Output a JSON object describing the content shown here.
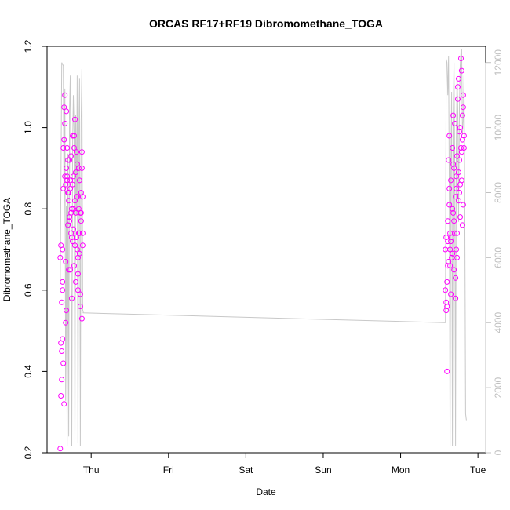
{
  "chart_data": {
    "type": "scatter",
    "title": "ORCAS RF17+RF19 Dibromomethane_TOGA",
    "xlabel": "Date",
    "ylabel": "Dibromomethane_TOGA",
    "x_tick_labels": [
      "Thu",
      "Fri",
      "Sat",
      "Sun",
      "Mon",
      "Tue"
    ],
    "x_ticks": [
      1.0,
      2.0,
      3.0,
      4.0,
      5.0,
      6.0
    ],
    "xlim": [
      0.43,
      6.1
    ],
    "y_ticks": [
      0.2,
      0.4,
      0.6,
      0.8,
      1.0,
      1.2
    ],
    "y_tick_labels": [
      "0.2",
      "0.4",
      "0.6",
      "0.8",
      "1.0",
      "1.2"
    ],
    "ylim": [
      0.2,
      1.2
    ],
    "y2_ticks": [
      0,
      2000,
      4000,
      6000,
      8000,
      10000,
      12000
    ],
    "y2_tick_labels": [
      "0",
      "2000",
      "4000",
      "6000",
      "8000",
      "10000",
      "12000"
    ],
    "y2lim": [
      0,
      12500
    ],
    "colors": {
      "points": "#ff00ff",
      "altitude_line": "#c8c8c8",
      "right_axis": "#c0c0c0"
    },
    "series": [
      {
        "kind": "points",
        "x": [
          0.6,
          0.61,
          0.62,
          0.63,
          0.64,
          0.65,
          0.66,
          0.67,
          0.68,
          0.69,
          0.7,
          0.71,
          0.72,
          0.73,
          0.74,
          0.75,
          0.76,
          0.77,
          0.78,
          0.79,
          0.8,
          0.81,
          0.82,
          0.83,
          0.84,
          0.85,
          0.86,
          0.87,
          0.88,
          0.89,
          0.6,
          0.61,
          0.62,
          0.63,
          0.64,
          0.65,
          0.66,
          0.67,
          0.68,
          0.69,
          0.7,
          0.71,
          0.72,
          0.73,
          0.74,
          0.75,
          0.76,
          0.77,
          0.78,
          0.79,
          0.8,
          0.81,
          0.82,
          0.83,
          0.84,
          0.85,
          0.86,
          0.87,
          0.88,
          0.89,
          0.61,
          0.63,
          0.65,
          0.67,
          0.69,
          0.71,
          0.73,
          0.75,
          0.77,
          0.79,
          0.81,
          0.83,
          0.85,
          0.87,
          0.89,
          0.62,
          0.66,
          0.7,
          0.74,
          0.78,
          0.82,
          0.86,
          0.64,
          0.68,
          0.72,
          0.76,
          0.8,
          0.84,
          0.88,
          0.63,
          5.58,
          5.59,
          5.6,
          5.61,
          5.62,
          5.63,
          5.64,
          5.65,
          5.66,
          5.67,
          5.68,
          5.69,
          5.7,
          5.71,
          5.72,
          5.73,
          5.74,
          5.75,
          5.76,
          5.77,
          5.78,
          5.79,
          5.8,
          5.81,
          5.82,
          5.58,
          5.59,
          5.6,
          5.61,
          5.62,
          5.63,
          5.64,
          5.65,
          5.66,
          5.67,
          5.68,
          5.69,
          5.7,
          5.71,
          5.72,
          5.73,
          5.74,
          5.75,
          5.76,
          5.77,
          5.78,
          5.79,
          5.8,
          5.81,
          5.82,
          5.59,
          5.61,
          5.63,
          5.65,
          5.67,
          5.69,
          5.71,
          5.73,
          5.75,
          5.77,
          5.79,
          5.81,
          5.6,
          5.64,
          5.68,
          5.72,
          5.76,
          5.8
        ],
        "y": [
          0.21,
          0.47,
          0.38,
          0.7,
          0.85,
          0.97,
          1.08,
          0.86,
          0.9,
          0.95,
          0.92,
          0.82,
          0.78,
          0.85,
          0.74,
          0.8,
          0.72,
          0.88,
          0.98,
          1.02,
          0.79,
          0.83,
          0.7,
          0.6,
          0.9,
          0.74,
          0.56,
          0.79,
          0.53,
          0.83,
          0.68,
          0.34,
          0.45,
          0.6,
          0.95,
          1.05,
          0.88,
          0.67,
          0.55,
          0.88,
          0.76,
          0.84,
          0.92,
          0.65,
          0.79,
          0.58,
          0.86,
          0.75,
          0.95,
          0.82,
          0.62,
          0.73,
          0.91,
          0.68,
          0.8,
          0.87,
          0.59,
          0.77,
          0.94,
          0.71,
          0.71,
          0.48,
          0.32,
          0.52,
          0.87,
          0.65,
          0.87,
          0.73,
          0.8,
          0.71,
          0.94,
          0.64,
          0.69,
          0.84,
          0.74,
          0.57,
          1.01,
          0.84,
          0.93,
          0.66,
          0.83,
          0.79,
          0.42,
          1.04,
          0.77,
          0.98,
          0.89,
          0.74,
          0.9,
          0.62,
          0.6,
          0.57,
          0.4,
          0.72,
          0.92,
          0.85,
          0.7,
          0.59,
          0.68,
          0.8,
          1.03,
          0.65,
          0.74,
          0.58,
          0.88,
          0.93,
          1.07,
          0.82,
          0.99,
          0.86,
          0.95,
          1.14,
          0.97,
          0.81,
          0.95,
          0.7,
          0.55,
          0.62,
          0.77,
          0.67,
          0.98,
          0.66,
          0.87,
          0.73,
          0.95,
          0.79,
          0.9,
          1.01,
          0.63,
          0.85,
          0.74,
          1.1,
          0.89,
          0.92,
          1.0,
          1.17,
          0.87,
          0.76,
          1.05,
          0.98,
          0.73,
          0.66,
          0.81,
          0.72,
          0.69,
          0.77,
          0.83,
          0.68,
          1.12,
          0.78,
          0.94,
          1.08,
          0.56,
          0.74,
          0.91,
          0.7,
          0.84,
          1.03
        ]
      },
      {
        "kind": "line",
        "name": "",
        "x": [
          0.6,
          0.62,
          0.64,
          0.65,
          0.66,
          0.67,
          0.68,
          0.69,
          0.7,
          0.71,
          0.72,
          0.73,
          0.74,
          0.75,
          0.76,
          0.77,
          0.78,
          0.79,
          0.8,
          0.81,
          0.82,
          0.83,
          0.84,
          0.85,
          0.86,
          0.87,
          0.88,
          0.89,
          0.9,
          0.89,
          0.9,
          5.57,
          5.58,
          5.59,
          5.6,
          5.61,
          5.62,
          5.63,
          5.64,
          5.65,
          5.66,
          5.67,
          5.68,
          5.69,
          5.7,
          5.71,
          5.72,
          5.73,
          5.74,
          5.75,
          5.76,
          5.77,
          5.78,
          5.79,
          5.8,
          5.81,
          5.82,
          5.83,
          5.84,
          5.85
        ],
        "y": [
          5200,
          12000,
          11900,
          7000,
          11200,
          1600,
          7600,
          200,
          9200,
          500,
          10500,
          11600,
          7100,
          200,
          9300,
          11000,
          9800,
          300,
          10400,
          7300,
          11600,
          300,
          9600,
          11500,
          200,
          10200,
          11800,
          4400,
          4300,
          4300,
          4300,
          4000,
          4000,
          12100,
          12000,
          11000,
          12200,
          7800,
          200,
          8600,
          11100,
          200,
          10300,
          12000,
          8700,
          200,
          9200,
          11600,
          10500,
          7100,
          10600,
          11900,
          12300,
          12400,
          9800,
          10200,
          11600,
          7500,
          1200,
          1000
        ]
      }
    ]
  }
}
